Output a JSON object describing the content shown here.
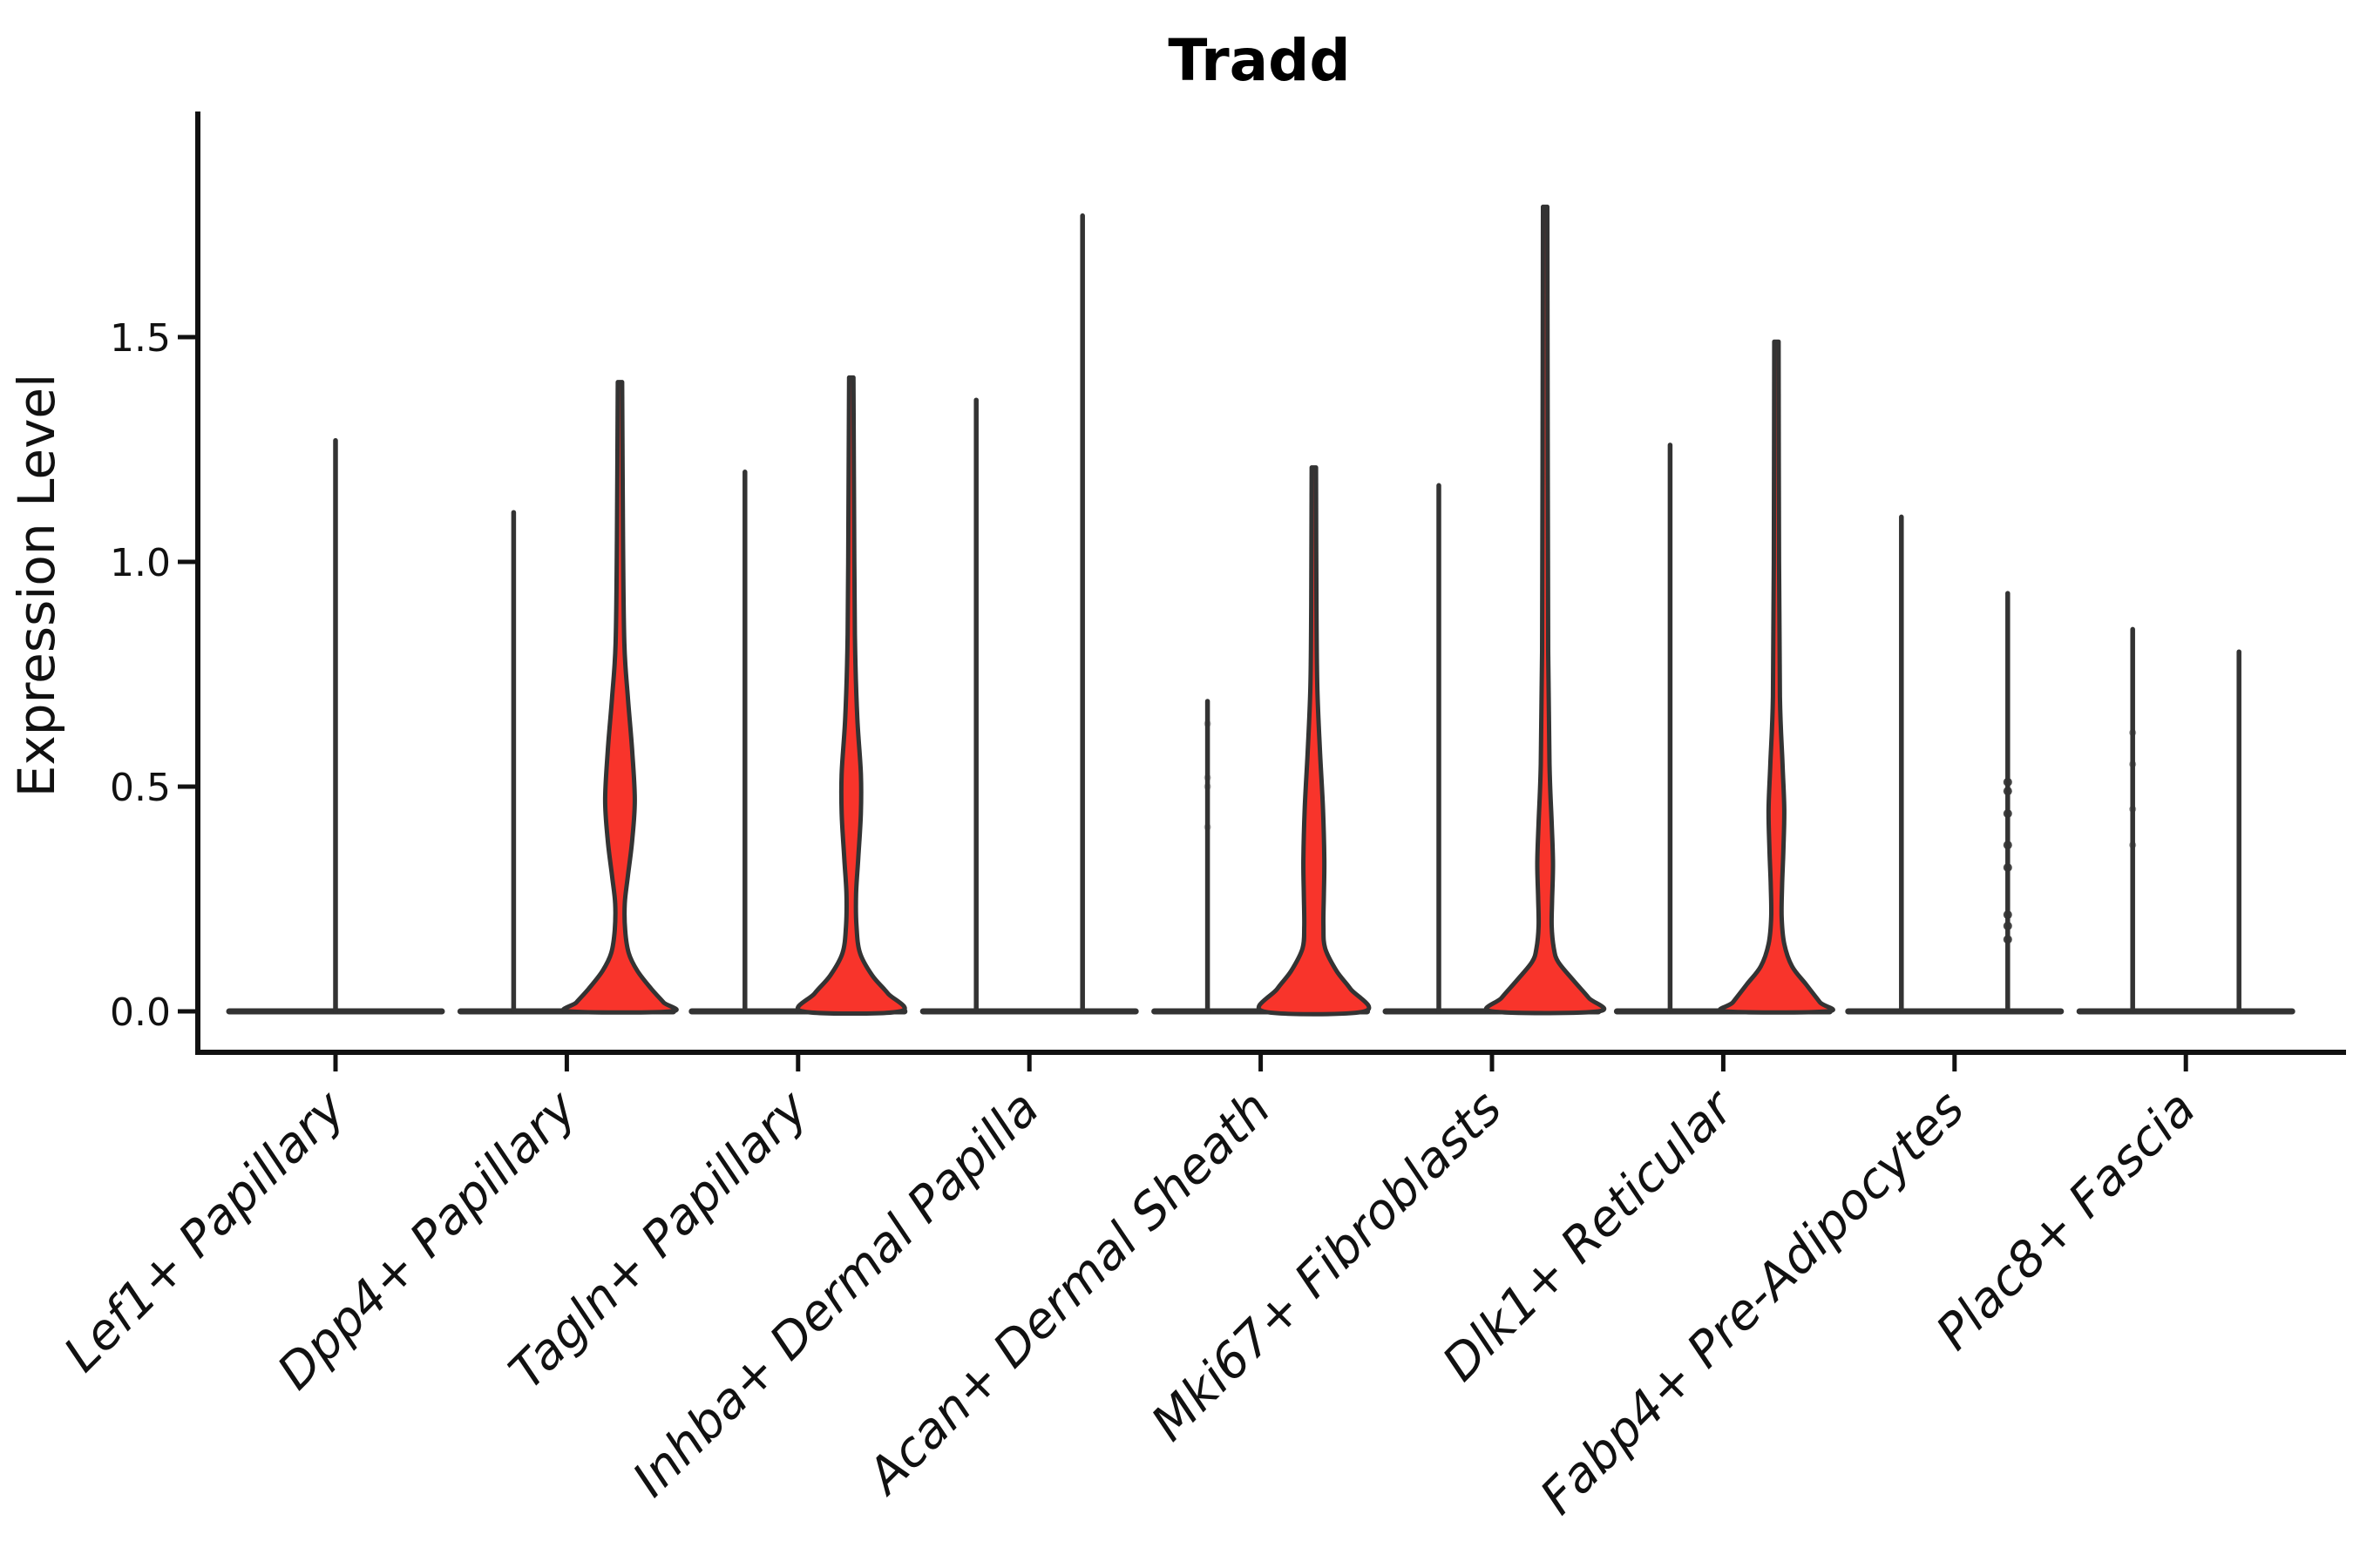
{
  "title": "Tradd",
  "y_axis": {
    "label": "Expression Level",
    "tick_labels": [
      "0.0",
      "0.5",
      "1.0",
      "1.5"
    ]
  },
  "colors": {
    "violin_fill": "#f8342b",
    "ink": "#333333",
    "axis": "#111111"
  },
  "chart_data": {
    "type": "violin",
    "title": "Tradd",
    "ylabel": "Expression Level",
    "xlabel": "",
    "yticks": [
      0.0,
      0.5,
      1.0,
      1.5
    ],
    "ylim": [
      -0.09,
      1.99
    ],
    "grid": false,
    "legend": "none",
    "style_note": "zero-inflated expression violins; left violin of each pair is a thin spike, right violin has red density body; first category has a single full-width violin",
    "categories": [
      "Lef1+ Papillary",
      "Dpp4+ Papillary",
      "Tagln+ Papillary",
      "Inhba+ Dermal Papilla",
      "Acan+ Dermal Sheath",
      "Mki67+ Fibroblasts",
      "Dlk1+ Reticular",
      "Fabp4+ Pre-Adipocytes",
      "Plac8+ Fascia"
    ],
    "violins": [
      {
        "cat": 0,
        "category": "Lef1+ Papillary",
        "position": "center",
        "max": 1.27,
        "body": null,
        "dots": null
      },
      {
        "cat": 1,
        "category": "Dpp4+ Papillary",
        "position": "left",
        "max": 1.11,
        "body": null,
        "dots": null
      },
      {
        "cat": 1,
        "category": "Dpp4+ Papillary",
        "position": "right",
        "max": 1.4,
        "body": [
          [
            1.4,
            2.5
          ],
          [
            1.05,
            3.5
          ],
          [
            0.82,
            5
          ],
          [
            0.7,
            9
          ],
          [
            0.58,
            14
          ],
          [
            0.47,
            17
          ],
          [
            0.38,
            14
          ],
          [
            0.3,
            9
          ],
          [
            0.24,
            5.5
          ],
          [
            0.18,
            6
          ],
          [
            0.13,
            10
          ],
          [
            0.09,
            20
          ],
          [
            0.05,
            36
          ],
          [
            0.02,
            50
          ],
          [
            0.0,
            58
          ]
        ],
        "dots": null
      },
      {
        "cat": 2,
        "category": "Tagln+ Papillary",
        "position": "left",
        "max": 1.2,
        "body": null,
        "dots": null
      },
      {
        "cat": 2,
        "category": "Tagln+ Papillary",
        "position": "right",
        "max": 1.41,
        "body": [
          [
            1.41,
            2.5
          ],
          [
            1.0,
            3.5
          ],
          [
            0.8,
            4.5
          ],
          [
            0.65,
            7
          ],
          [
            0.53,
            11
          ],
          [
            0.44,
            11
          ],
          [
            0.34,
            8
          ],
          [
            0.26,
            5.5
          ],
          [
            0.19,
            6
          ],
          [
            0.13,
            10
          ],
          [
            0.08,
            24
          ],
          [
            0.04,
            42
          ],
          [
            0.0,
            56
          ]
        ],
        "dots": null
      },
      {
        "cat": 3,
        "category": "Inhba+ Dermal Papilla",
        "position": "left",
        "max": 1.36,
        "body": null,
        "dots": null
      },
      {
        "cat": 3,
        "category": "Inhba+ Dermal Papilla",
        "position": "right",
        "max": 1.77,
        "body": null,
        "dots": null
      },
      {
        "cat": 4,
        "category": "Acan+ Dermal Sheath",
        "position": "left",
        "max": 0.69,
        "body": null,
        "dots": {
          "values": [
            0.64,
            0.52,
            0.5,
            0.41
          ],
          "r": 4,
          "opacity": 0.35
        }
      },
      {
        "cat": 4,
        "category": "Acan+ Dermal Sheath",
        "position": "right",
        "max": 1.21,
        "body": [
          [
            1.21,
            2.5
          ],
          [
            0.9,
            3
          ],
          [
            0.72,
            4
          ],
          [
            0.58,
            7
          ],
          [
            0.45,
            10.5
          ],
          [
            0.34,
            12
          ],
          [
            0.26,
            11.5
          ],
          [
            0.19,
            11
          ],
          [
            0.14,
            13
          ],
          [
            0.09,
            26
          ],
          [
            0.05,
            42
          ],
          [
            0.0,
            58
          ]
        ],
        "dots": null
      },
      {
        "cat": 5,
        "category": "Mki67+ Fibroblasts",
        "position": "left",
        "max": 1.17,
        "body": null,
        "dots": null
      },
      {
        "cat": 5,
        "category": "Mki67+ Fibroblasts",
        "position": "right",
        "max": 1.79,
        "body": [
          [
            1.79,
            2.5
          ],
          [
            1.2,
            3
          ],
          [
            0.8,
            3.5
          ],
          [
            0.55,
            5
          ],
          [
            0.42,
            7.5
          ],
          [
            0.33,
            9
          ],
          [
            0.25,
            8
          ],
          [
            0.19,
            7.5
          ],
          [
            0.14,
            10
          ],
          [
            0.11,
            15
          ],
          [
            0.07,
            32
          ],
          [
            0.03,
            50
          ],
          [
            0.0,
            61
          ]
        ],
        "dots": null
      },
      {
        "cat": 6,
        "category": "Dlk1+ Reticular",
        "position": "left",
        "max": 1.26,
        "body": null,
        "dots": null
      },
      {
        "cat": 6,
        "category": "Dlk1+ Reticular",
        "position": "right",
        "max": 1.49,
        "body": [
          [
            1.49,
            2.5
          ],
          [
            1.0,
            3
          ],
          [
            0.7,
            4
          ],
          [
            0.55,
            7
          ],
          [
            0.45,
            9
          ],
          [
            0.36,
            8
          ],
          [
            0.28,
            6.5
          ],
          [
            0.21,
            6
          ],
          [
            0.15,
            9
          ],
          [
            0.1,
            18
          ],
          [
            0.06,
            34
          ],
          [
            0.02,
            50
          ],
          [
            0.0,
            58
          ]
        ],
        "dots": null
      },
      {
        "cat": 7,
        "category": "Fabp4+ Pre-Adipocytes",
        "position": "left",
        "max": 1.1,
        "body": null,
        "dots": null
      },
      {
        "cat": 7,
        "category": "Fabp4+ Pre-Adipocytes",
        "position": "right",
        "max": 0.93,
        "body": null,
        "dots": {
          "values": [
            0.51,
            0.49,
            0.44,
            0.37,
            0.32,
            0.215,
            0.19,
            0.16
          ],
          "r": 5,
          "opacity": 0.9
        }
      },
      {
        "cat": 8,
        "category": "Plac8+ Fascia",
        "position": "left",
        "max": 0.85,
        "body": null,
        "dots": {
          "values": [
            0.62,
            0.55,
            0.45,
            0.37
          ],
          "r": 4,
          "opacity": 0.5
        }
      },
      {
        "cat": 8,
        "category": "Plac8+ Fascia",
        "position": "right",
        "max": 0.8,
        "body": null,
        "dots": null
      }
    ]
  }
}
